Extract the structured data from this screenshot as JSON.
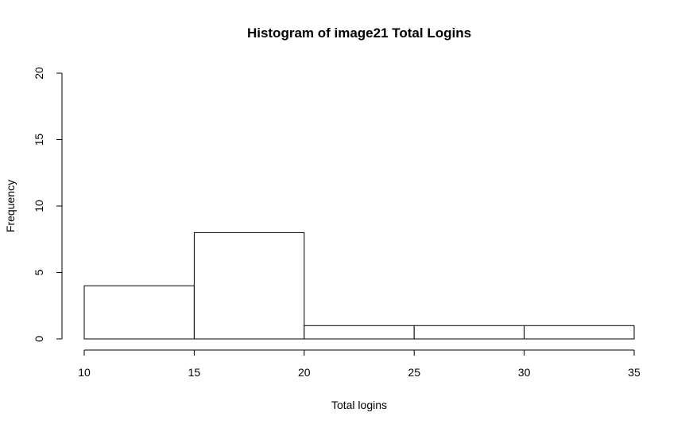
{
  "chart_data": {
    "type": "bar",
    "title": "Histogram of image21 Total Logins",
    "xlabel": "Total logins",
    "ylabel": "Frequency",
    "bins": [
      {
        "start": 10,
        "end": 15,
        "count": 4
      },
      {
        "start": 15,
        "end": 20,
        "count": 8
      },
      {
        "start": 20,
        "end": 25,
        "count": 1
      },
      {
        "start": 25,
        "end": 30,
        "count": 1
      },
      {
        "start": 30,
        "end": 35,
        "count": 1
      }
    ],
    "xlim": [
      10,
      35
    ],
    "ylim": [
      0,
      20
    ],
    "xticks": [
      "10",
      "15",
      "20",
      "25",
      "30",
      "35"
    ],
    "yticks": [
      "0",
      "5",
      "10",
      "15",
      "20"
    ],
    "grid": false,
    "bar_fill": "#ffffff",
    "bar_edge": "#000000"
  }
}
